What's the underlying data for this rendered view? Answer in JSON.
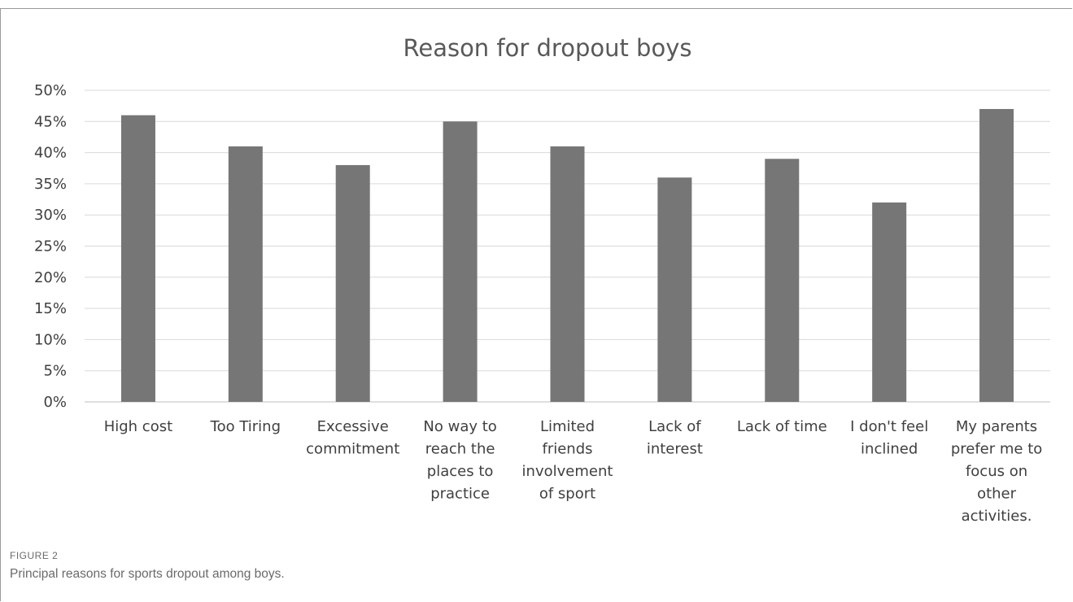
{
  "figure": {
    "label": "FIGURE 2",
    "caption": "Principal reasons for sports dropout among boys."
  },
  "chart_data": {
    "type": "bar",
    "title": "Reason for dropout boys",
    "xlabel": "",
    "ylabel": "",
    "ylim": [
      0,
      0.5
    ],
    "y_ticks": [
      "0%",
      "5%",
      "10%",
      "15%",
      "20%",
      "25%",
      "30%",
      "35%",
      "40%",
      "45%",
      "50%"
    ],
    "y_tick_values": [
      0,
      0.05,
      0.1,
      0.15,
      0.2,
      0.25,
      0.3,
      0.35,
      0.4,
      0.45,
      0.5
    ],
    "grid": true,
    "legend": "none",
    "bar_color": "#767676",
    "categories": [
      [
        "High cost"
      ],
      [
        "Too Tiring"
      ],
      [
        "Excessive",
        "commitment"
      ],
      [
        "No way to",
        "reach the",
        "places to",
        "practice"
      ],
      [
        "Limited",
        "friends",
        "involvement",
        "of sport"
      ],
      [
        "Lack of",
        "interest"
      ],
      [
        "Lack of time"
      ],
      [
        "I don't feel",
        "inclined"
      ],
      [
        "My parents",
        "prefer me to",
        "focus on",
        "other",
        "activities."
      ]
    ],
    "values": [
      0.46,
      0.41,
      0.38,
      0.45,
      0.41,
      0.36,
      0.39,
      0.32,
      0.47
    ]
  }
}
